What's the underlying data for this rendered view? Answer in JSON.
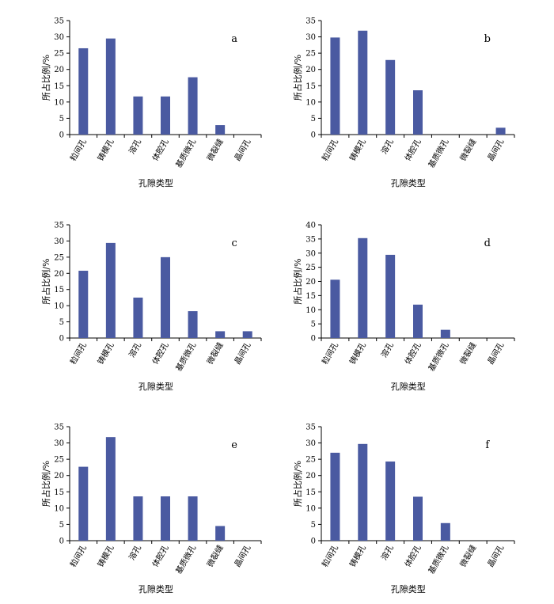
{
  "chart_data": [
    {
      "type": "bar",
      "panel": "a",
      "categories": [
        "粒间孔",
        "铸模孔",
        "溶孔",
        "体腔孔",
        "基质微孔",
        "微裂缝",
        "晶间孔"
      ],
      "values": [
        26.5,
        29.5,
        11.7,
        11.7,
        17.6,
        2.9,
        0
      ],
      "xlabel": "孔隙类型",
      "ylabel": "所占比例/%",
      "ylim": [
        0,
        35
      ],
      "yticks": [
        0,
        5,
        10,
        15,
        20,
        25,
        30,
        35
      ],
      "grid": false,
      "bar_color": "#4a5aa1"
    },
    {
      "type": "bar",
      "panel": "b",
      "categories": [
        "粒间孔",
        "铸模孔",
        "溶孔",
        "体腔孔",
        "基质微孔",
        "微裂缝",
        "晶间孔"
      ],
      "values": [
        29.8,
        31.9,
        22.9,
        13.6,
        0,
        0,
        2.1
      ],
      "xlabel": "孔隙类型",
      "ylabel": "所占比例/%",
      "ylim": [
        0,
        35
      ],
      "yticks": [
        0,
        5,
        10,
        15,
        20,
        25,
        30,
        35
      ],
      "grid": false,
      "bar_color": "#4a5aa1"
    },
    {
      "type": "bar",
      "panel": "c",
      "categories": [
        "粒间孔",
        "铸模孔",
        "溶孔",
        "体腔孔",
        "基质微孔",
        "微裂缝",
        "晶间孔"
      ],
      "values": [
        20.8,
        29.4,
        12.5,
        25.0,
        8.3,
        2.1,
        2.1
      ],
      "xlabel": "孔隙类型",
      "ylabel": "所占比例/%",
      "ylim": [
        0,
        35
      ],
      "yticks": [
        0,
        5,
        10,
        15,
        20,
        25,
        30,
        35
      ],
      "grid": false,
      "bar_color": "#4a5aa1"
    },
    {
      "type": "bar",
      "panel": "d",
      "categories": [
        "粒间孔",
        "铸模孔",
        "溶孔",
        "体腔孔",
        "基质微孔",
        "微裂缝",
        "晶间孔"
      ],
      "values": [
        20.6,
        35.3,
        29.4,
        11.8,
        2.9,
        0,
        0
      ],
      "xlabel": "孔隙类型",
      "ylabel": "所占比例/%",
      "ylim": [
        0,
        40
      ],
      "yticks": [
        0,
        5,
        10,
        15,
        20,
        25,
        30,
        35,
        40
      ],
      "grid": false,
      "bar_color": "#4a5aa1"
    },
    {
      "type": "bar",
      "panel": "e",
      "categories": [
        "粒间孔",
        "铸模孔",
        "溶孔",
        "体腔孔",
        "基质微孔",
        "微裂缝",
        "晶间孔"
      ],
      "values": [
        22.7,
        31.8,
        13.6,
        13.6,
        13.6,
        4.5,
        0
      ],
      "xlabel": "孔隙类型",
      "ylabel": "所占比例/%",
      "ylim": [
        0,
        35
      ],
      "yticks": [
        0,
        5,
        10,
        15,
        20,
        25,
        30,
        35
      ],
      "grid": false,
      "bar_color": "#4a5aa1"
    },
    {
      "type": "bar",
      "panel": "f",
      "categories": [
        "粒间孔",
        "铸模孔",
        "溶孔",
        "体腔孔",
        "基质微孔",
        "微裂缝",
        "晶间孔"
      ],
      "values": [
        27.0,
        29.7,
        24.3,
        13.5,
        5.4,
        0,
        0
      ],
      "xlabel": "孔隙类型",
      "ylabel": "所占比例/%",
      "ylim": [
        0,
        35
      ],
      "yticks": [
        0,
        5,
        10,
        15,
        20,
        25,
        30,
        35
      ],
      "grid": false,
      "bar_color": "#4a5aa1"
    }
  ]
}
